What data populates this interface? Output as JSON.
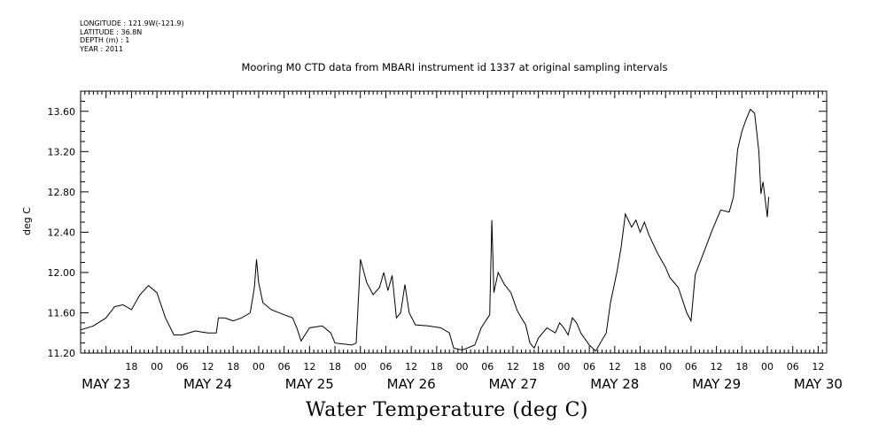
{
  "header": {
    "longitude": "LONGITUDE : 121.9W(-121.9)",
    "latitude": "LATITUDE : 36.8N",
    "depth": "DEPTH (m) : 1",
    "year": "YEAR : 2011"
  },
  "chart_data": {
    "type": "line",
    "title": "Mooring M0 CTD data from MBARI instrument id 1337 at original sampling intervals",
    "main_label": "Water Temperature (deg C)",
    "ylabel": "deg C",
    "xlabel": "",
    "ylim": [
      11.2,
      13.8
    ],
    "yticks": [
      "11.20",
      "11.60",
      "12.00",
      "12.40",
      "12.80",
      "13.20",
      "13.60"
    ],
    "xlim": [
      "2011-05-23T06:00",
      "2011-05-30T14:00"
    ],
    "hour_ticks": [
      {
        "t": "2011-05-23T18:00",
        "label": "18"
      },
      {
        "t": "2011-05-24T00:00",
        "label": "00"
      },
      {
        "t": "2011-05-24T06:00",
        "label": "06"
      },
      {
        "t": "2011-05-24T12:00",
        "label": "12"
      },
      {
        "t": "2011-05-24T18:00",
        "label": "18"
      },
      {
        "t": "2011-05-25T00:00",
        "label": "00"
      },
      {
        "t": "2011-05-25T06:00",
        "label": "06"
      },
      {
        "t": "2011-05-25T12:00",
        "label": "12"
      },
      {
        "t": "2011-05-25T18:00",
        "label": "18"
      },
      {
        "t": "2011-05-26T00:00",
        "label": "00"
      },
      {
        "t": "2011-05-26T06:00",
        "label": "06"
      },
      {
        "t": "2011-05-26T12:00",
        "label": "12"
      },
      {
        "t": "2011-05-26T18:00",
        "label": "18"
      },
      {
        "t": "2011-05-27T00:00",
        "label": "00"
      },
      {
        "t": "2011-05-27T06:00",
        "label": "06"
      },
      {
        "t": "2011-05-27T12:00",
        "label": "12"
      },
      {
        "t": "2011-05-27T18:00",
        "label": "18"
      },
      {
        "t": "2011-05-28T00:00",
        "label": "00"
      },
      {
        "t": "2011-05-28T06:00",
        "label": "06"
      },
      {
        "t": "2011-05-28T12:00",
        "label": "12"
      },
      {
        "t": "2011-05-28T18:00",
        "label": "18"
      },
      {
        "t": "2011-05-29T00:00",
        "label": "00"
      },
      {
        "t": "2011-05-29T06:00",
        "label": "06"
      },
      {
        "t": "2011-05-29T12:00",
        "label": "12"
      },
      {
        "t": "2011-05-29T18:00",
        "label": "18"
      },
      {
        "t": "2011-05-30T00:00",
        "label": "00"
      },
      {
        "t": "2011-05-30T06:00",
        "label": "06"
      },
      {
        "t": "2011-05-30T12:00",
        "label": "12"
      }
    ],
    "day_labels": [
      {
        "t": "2011-05-23T12:00",
        "label": "MAY 23"
      },
      {
        "t": "2011-05-24T12:00",
        "label": "MAY 24"
      },
      {
        "t": "2011-05-25T12:00",
        "label": "MAY 25"
      },
      {
        "t": "2011-05-26T12:00",
        "label": "MAY 26"
      },
      {
        "t": "2011-05-27T12:00",
        "label": "MAY 27"
      },
      {
        "t": "2011-05-28T12:00",
        "label": "MAY 28"
      },
      {
        "t": "2011-05-29T12:00",
        "label": "MAY 29"
      },
      {
        "t": "2011-05-30T12:00",
        "label": "MAY 30"
      }
    ],
    "grid": false,
    "series": [
      {
        "color": "#000000",
        "points": [
          [
            "2011-05-23T06:00",
            11.43
          ],
          [
            "2011-05-23T09:00",
            11.47
          ],
          [
            "2011-05-23T12:00",
            11.55
          ],
          [
            "2011-05-23T14:00",
            11.66
          ],
          [
            "2011-05-23T16:00",
            11.68
          ],
          [
            "2011-05-23T18:00",
            11.63
          ],
          [
            "2011-05-23T20:00",
            11.78
          ],
          [
            "2011-05-23T22:00",
            11.87
          ],
          [
            "2011-05-24T00:00",
            11.8
          ],
          [
            "2011-05-24T02:00",
            11.55
          ],
          [
            "2011-05-24T04:00",
            11.38
          ],
          [
            "2011-05-24T06:00",
            11.38
          ],
          [
            "2011-05-24T09:00",
            11.42
          ],
          [
            "2011-05-24T12:00",
            11.4
          ],
          [
            "2011-05-24T14:00",
            11.4
          ],
          [
            "2011-05-24T14:30",
            11.55
          ],
          [
            "2011-05-24T16:00",
            11.55
          ],
          [
            "2011-05-24T18:00",
            11.52
          ],
          [
            "2011-05-24T20:00",
            11.55
          ],
          [
            "2011-05-24T22:00",
            11.6
          ],
          [
            "2011-05-24T23:00",
            11.85
          ],
          [
            "2011-05-24T23:30",
            12.13
          ],
          [
            "2011-05-25T00:00",
            11.9
          ],
          [
            "2011-05-25T01:00",
            11.7
          ],
          [
            "2011-05-25T03:00",
            11.63
          ],
          [
            "2011-05-25T06:00",
            11.58
          ],
          [
            "2011-05-25T08:00",
            11.55
          ],
          [
            "2011-05-25T09:00",
            11.45
          ],
          [
            "2011-05-25T10:00",
            11.32
          ],
          [
            "2011-05-25T12:00",
            11.45
          ],
          [
            "2011-05-25T15:00",
            11.47
          ],
          [
            "2011-05-25T17:00",
            11.4
          ],
          [
            "2011-05-25T18:00",
            11.3
          ],
          [
            "2011-05-25T22:00",
            11.28
          ],
          [
            "2011-05-25T23:00",
            11.3
          ],
          [
            "2011-05-26T00:00",
            12.13
          ],
          [
            "2011-05-26T01:30",
            11.9
          ],
          [
            "2011-05-26T03:00",
            11.78
          ],
          [
            "2011-05-26T04:30",
            11.85
          ],
          [
            "2011-05-26T05:30",
            12.0
          ],
          [
            "2011-05-26T06:30",
            11.82
          ],
          [
            "2011-05-26T07:30",
            11.97
          ],
          [
            "2011-05-26T08:30",
            11.55
          ],
          [
            "2011-05-26T09:30",
            11.6
          ],
          [
            "2011-05-26T10:30",
            11.88
          ],
          [
            "2011-05-26T11:30",
            11.6
          ],
          [
            "2011-05-26T13:00",
            11.48
          ],
          [
            "2011-05-26T16:00",
            11.47
          ],
          [
            "2011-05-26T19:00",
            11.45
          ],
          [
            "2011-05-26T21:00",
            11.4
          ],
          [
            "2011-05-26T22:00",
            11.25
          ],
          [
            "2011-05-27T00:00",
            11.23
          ],
          [
            "2011-05-27T03:00",
            11.28
          ],
          [
            "2011-05-27T04:30",
            11.45
          ],
          [
            "2011-05-27T06:30",
            11.58
          ],
          [
            "2011-05-27T07:00",
            12.52
          ],
          [
            "2011-05-27T07:30",
            11.8
          ],
          [
            "2011-05-27T08:30",
            12.0
          ],
          [
            "2011-05-27T10:00",
            11.88
          ],
          [
            "2011-05-27T11:30",
            11.8
          ],
          [
            "2011-05-27T13:00",
            11.62
          ],
          [
            "2011-05-27T14:00",
            11.55
          ],
          [
            "2011-05-27T15:00",
            11.48
          ],
          [
            "2011-05-27T16:00",
            11.3
          ],
          [
            "2011-05-27T17:00",
            11.25
          ],
          [
            "2011-05-27T18:00",
            11.35
          ],
          [
            "2011-05-27T20:00",
            11.45
          ],
          [
            "2011-05-27T22:00",
            11.4
          ],
          [
            "2011-05-27T23:00",
            11.5
          ],
          [
            "2011-05-28T00:00",
            11.45
          ],
          [
            "2011-05-28T01:00",
            11.38
          ],
          [
            "2011-05-28T02:00",
            11.55
          ],
          [
            "2011-05-28T03:00",
            11.5
          ],
          [
            "2011-05-28T04:00",
            11.4
          ],
          [
            "2011-05-28T06:00",
            11.28
          ],
          [
            "2011-05-28T07:30",
            11.22
          ],
          [
            "2011-05-28T10:00",
            11.4
          ],
          [
            "2011-05-28T11:00",
            11.7
          ],
          [
            "2011-05-28T12:30",
            12.0
          ],
          [
            "2011-05-28T13:30",
            12.25
          ],
          [
            "2011-05-28T14:30",
            12.58
          ],
          [
            "2011-05-28T16:00",
            12.45
          ],
          [
            "2011-05-28T17:00",
            12.52
          ],
          [
            "2011-05-28T18:00",
            12.4
          ],
          [
            "2011-05-28T19:00",
            12.5
          ],
          [
            "2011-05-28T20:00",
            12.38
          ],
          [
            "2011-05-28T22:00",
            12.2
          ],
          [
            "2011-05-29T00:00",
            12.05
          ],
          [
            "2011-05-29T01:00",
            11.95
          ],
          [
            "2011-05-29T03:00",
            11.85
          ],
          [
            "2011-05-29T05:00",
            11.6
          ],
          [
            "2011-05-29T06:00",
            11.52
          ],
          [
            "2011-05-29T07:00",
            11.98
          ],
          [
            "2011-05-29T09:00",
            12.2
          ],
          [
            "2011-05-29T11:00",
            12.42
          ],
          [
            "2011-05-29T13:00",
            12.62
          ],
          [
            "2011-05-29T15:00",
            12.6
          ],
          [
            "2011-05-29T16:00",
            12.75
          ],
          [
            "2011-05-29T17:00",
            13.22
          ],
          [
            "2011-05-29T18:00",
            13.4
          ],
          [
            "2011-05-29T19:00",
            13.52
          ],
          [
            "2011-05-29T20:00",
            13.62
          ],
          [
            "2011-05-29T21:00",
            13.58
          ],
          [
            "2011-05-29T22:00",
            13.2
          ],
          [
            "2011-05-29T22:30",
            12.78
          ],
          [
            "2011-05-29T23:00",
            12.9
          ],
          [
            "2011-05-30T00:00",
            12.55
          ],
          [
            "2011-05-30T00:20",
            12.75
          ]
        ]
      }
    ]
  }
}
